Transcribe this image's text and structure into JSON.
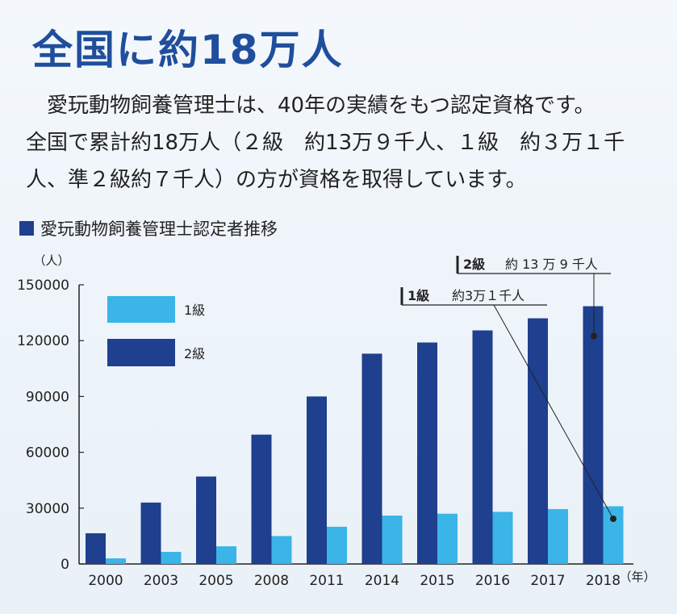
{
  "headline": "全国に約18万人",
  "paragraph": [
    "　愛玩動物飼養管理士は、40年の実績をもつ認定資格です。",
    "全国で累計約18万人（２級　約13万９千人、１級　約３万１千",
    "人、準２級約７千人）の方が資格を取得しています。"
  ],
  "chart_heading": "愛玩動物飼養管理士認定者推移",
  "colors": {
    "level1": "#3bb4e8",
    "level2": "#1f3f8f",
    "headline": "#1f4e9c"
  },
  "chart_data": {
    "type": "bar",
    "title": "愛玩動物飼養管理士認定者推移",
    "ylabel": "（人）",
    "xunit": "（年）",
    "categories": [
      "2000",
      "2003",
      "2005",
      "2008",
      "2011",
      "2014",
      "2015",
      "2016",
      "2017",
      "2018"
    ],
    "series": [
      {
        "name": "2級",
        "values": [
          16500,
          33000,
          47000,
          69500,
          90000,
          113000,
          119000,
          125500,
          132000,
          138500
        ]
      },
      {
        "name": "1級",
        "values": [
          3000,
          6500,
          9500,
          15000,
          20000,
          26000,
          27000,
          28000,
          29500,
          31000
        ]
      }
    ],
    "ylim": [
      0,
      150000
    ],
    "yticks": [
      0,
      30000,
      60000,
      90000,
      120000,
      150000
    ],
    "legend_position": "top-left",
    "annotations": [
      {
        "series": "2級",
        "label": "2級",
        "text": "約 13 万 9 千人"
      },
      {
        "series": "1級",
        "label": "1級",
        "text": "約3万１千人"
      }
    ]
  }
}
